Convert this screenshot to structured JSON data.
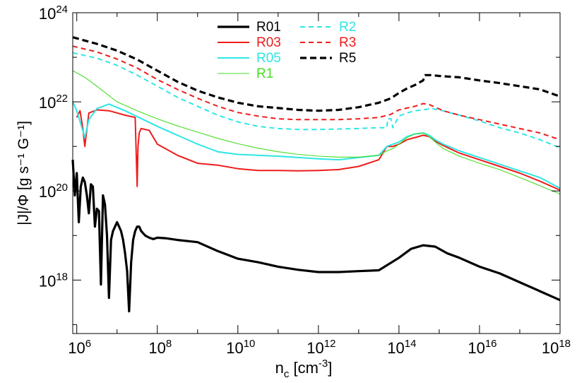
{
  "chart_data": {
    "type": "line",
    "title": "",
    "xlabel": {
      "base": "n",
      "sub": "c",
      "unit_pre": " [cm",
      "unit_sup": "-3",
      "unit_post": "]"
    },
    "ylabel": "|J|/Φ [g s⁻¹ G⁻¹]",
    "xscale": "log",
    "yscale": "log",
    "xlim": [
      5.9,
      18.0
    ],
    "ylim": [
      16.8,
      24.0
    ],
    "grid": false,
    "legend_position": "top-center",
    "x_ticks": [
      {
        "base": "10",
        "exp": "6"
      },
      {
        "base": "10",
        "exp": "8"
      },
      {
        "base": "10",
        "exp": "10"
      },
      {
        "base": "10",
        "exp": "12"
      },
      {
        "base": "10",
        "exp": "14"
      },
      {
        "base": "10",
        "exp": "16"
      },
      {
        "base": "10",
        "exp": "18"
      }
    ],
    "y_ticks": [
      {
        "base": "10",
        "exp": "18"
      },
      {
        "base": "10",
        "exp": "20"
      },
      {
        "base": "10",
        "exp": "22"
      },
      {
        "base": "10",
        "exp": "24"
      }
    ],
    "x_major_log": [
      6,
      8,
      10,
      12,
      14,
      16,
      18
    ],
    "y_major_log": [
      18,
      20,
      22,
      24
    ],
    "x_minor_log": [
      7,
      9,
      11,
      13,
      15,
      17
    ],
    "y_minor_log": [
      17,
      19,
      21,
      23
    ],
    "series": [
      {
        "name": "R01",
        "color": "#000000",
        "dash": "solid",
        "weight": "thick",
        "log_x": [
          5.9,
          5.95,
          6.0,
          6.05,
          6.1,
          6.15,
          6.2,
          6.25,
          6.3,
          6.35,
          6.4,
          6.45,
          6.5,
          6.55,
          6.6,
          6.65,
          6.7,
          6.75,
          6.8,
          6.85,
          6.9,
          6.95,
          7.0,
          7.05,
          7.1,
          7.15,
          7.2,
          7.25,
          7.3,
          7.35,
          7.4,
          7.45,
          7.5,
          7.55,
          7.6,
          7.7,
          7.8,
          7.9,
          8.0,
          8.2,
          8.5,
          9.0,
          9.5,
          10.0,
          10.5,
          11.0,
          11.5,
          12.0,
          12.5,
          13.0,
          13.5,
          14.0,
          14.3,
          14.6,
          14.9,
          15.2,
          15.5,
          16.0,
          16.5,
          17.0,
          17.5,
          18.0
        ],
        "log_y": [
          20.7,
          19.9,
          20.4,
          19.3,
          20.1,
          20.3,
          20.2,
          19.9,
          19.5,
          20.15,
          20.1,
          19.2,
          19.6,
          19.55,
          17.9,
          19.9,
          19.7,
          19.0,
          17.6,
          18.9,
          19.1,
          19.2,
          19.3,
          19.2,
          19.1,
          18.9,
          18.6,
          18.2,
          17.3,
          18.4,
          18.9,
          19.1,
          19.2,
          19.2,
          19.1,
          19.0,
          18.95,
          18.92,
          18.95,
          18.94,
          18.9,
          18.85,
          18.65,
          18.48,
          18.4,
          18.3,
          18.23,
          18.18,
          18.18,
          18.2,
          18.22,
          18.5,
          18.7,
          18.78,
          18.75,
          18.6,
          18.5,
          18.3,
          18.15,
          17.95,
          17.75,
          17.55
        ]
      },
      {
        "name": "R03",
        "color": "#ee1c1c",
        "dash": "solid",
        "weight": "medium",
        "log_x": [
          6.0,
          6.08,
          6.15,
          6.2,
          6.3,
          6.5,
          6.8,
          7.2,
          7.45,
          7.5,
          7.52,
          7.55,
          7.6,
          7.7,
          7.8,
          8.0,
          8.5,
          9.0,
          9.5,
          10.0,
          10.5,
          11.0,
          11.5,
          12.0,
          12.5,
          13.0,
          13.5,
          13.7,
          13.85,
          14.0,
          14.2,
          14.4,
          14.6,
          14.75,
          14.9,
          15.1,
          15.5,
          16.0,
          16.5,
          17.0,
          17.5,
          18.0
        ],
        "log_y": [
          21.65,
          21.8,
          21.4,
          21.0,
          21.75,
          21.82,
          21.8,
          21.7,
          21.65,
          20.1,
          21.0,
          21.3,
          21.4,
          21.38,
          21.36,
          21.05,
          20.8,
          20.62,
          20.58,
          20.5,
          20.46,
          20.46,
          20.45,
          20.46,
          20.48,
          20.55,
          20.7,
          21.0,
          21.0,
          21.05,
          21.15,
          21.2,
          21.25,
          21.22,
          21.12,
          21.02,
          20.85,
          20.7,
          20.55,
          20.4,
          20.22,
          20.02
        ]
      },
      {
        "name": "R05",
        "color": "#2ee6e6",
        "dash": "solid",
        "weight": "medium",
        "log_x": [
          5.9,
          6.0,
          6.1,
          6.2,
          6.3,
          6.5,
          6.8,
          7.2,
          8.0,
          8.5,
          9.0,
          9.5,
          10.0,
          10.5,
          11.0,
          11.5,
          12.0,
          12.5,
          13.0,
          13.5,
          13.7,
          13.85,
          14.0,
          14.2,
          14.4,
          14.6,
          14.75,
          14.9,
          15.1,
          15.5,
          16.0,
          16.5,
          17.0,
          17.5,
          18.0
        ],
        "log_y": [
          22.0,
          21.8,
          21.5,
          21.2,
          21.6,
          21.85,
          21.95,
          21.8,
          21.45,
          21.25,
          21.05,
          20.88,
          20.82,
          20.8,
          20.78,
          20.75,
          20.72,
          20.7,
          20.75,
          20.8,
          21.0,
          21.05,
          21.1,
          21.22,
          21.28,
          21.3,
          21.25,
          21.15,
          21.05,
          20.9,
          20.75,
          20.6,
          20.45,
          20.3,
          20.06
        ]
      },
      {
        "name": "R1",
        "color": "#44dd22",
        "dash": "solid",
        "weight": "thin",
        "log_x": [
          5.9,
          6.0,
          6.2,
          6.5,
          7.0,
          7.5,
          8.0,
          8.5,
          9.0,
          9.5,
          10.0,
          10.5,
          11.0,
          11.5,
          12.0,
          12.5,
          13.0,
          13.5,
          13.7,
          13.85,
          14.0,
          14.2,
          14.4,
          14.6,
          14.75,
          14.9,
          15.1,
          15.5,
          16.0,
          16.5,
          17.0,
          17.5,
          18.0
        ],
        "log_y": [
          22.7,
          22.65,
          22.55,
          22.35,
          22.0,
          21.8,
          21.62,
          21.46,
          21.32,
          21.18,
          21.06,
          20.96,
          20.88,
          20.82,
          20.78,
          20.76,
          20.76,
          20.8,
          20.9,
          20.95,
          21.05,
          21.2,
          21.28,
          21.3,
          21.22,
          21.1,
          20.95,
          20.78,
          20.62,
          20.48,
          20.3,
          20.12,
          19.93
        ]
      },
      {
        "name": "R2",
        "color": "#2ee6e6",
        "dash": "dashed",
        "weight": "medium",
        "log_x": [
          5.9,
          6.5,
          7.0,
          7.5,
          8.0,
          8.5,
          9.0,
          9.5,
          10.0,
          10.5,
          11.0,
          11.5,
          12.0,
          12.5,
          13.0,
          13.5,
          13.7,
          13.72,
          13.8,
          13.85,
          14.0,
          14.2,
          14.4,
          14.6,
          14.8,
          15.0,
          15.5,
          16.0,
          16.5,
          17.0,
          17.5,
          18.0
        ],
        "log_y": [
          23.1,
          22.98,
          22.82,
          22.6,
          22.35,
          22.1,
          21.9,
          21.7,
          21.55,
          21.45,
          21.4,
          21.38,
          21.38,
          21.39,
          21.4,
          21.42,
          21.42,
          21.62,
          21.62,
          21.42,
          21.68,
          21.75,
          21.8,
          21.82,
          21.85,
          21.82,
          21.7,
          21.57,
          21.42,
          21.3,
          21.15,
          20.97
        ]
      },
      {
        "name": "R3",
        "color": "#ee1c1c",
        "dash": "dashed",
        "weight": "medium",
        "log_x": [
          5.9,
          6.5,
          7.0,
          7.5,
          8.0,
          8.5,
          9.0,
          9.5,
          10.0,
          10.5,
          11.0,
          11.5,
          12.0,
          12.5,
          13.0,
          13.5,
          13.8,
          14.0,
          14.2,
          14.4,
          14.6,
          14.75,
          14.9,
          15.1,
          15.5,
          16.0,
          16.5,
          17.0,
          17.5,
          18.0
        ],
        "log_y": [
          23.25,
          23.12,
          22.96,
          22.76,
          22.5,
          22.28,
          22.08,
          21.9,
          21.76,
          21.68,
          21.62,
          21.6,
          21.6,
          21.6,
          21.62,
          21.65,
          21.72,
          21.82,
          21.86,
          21.9,
          21.96,
          21.94,
          21.88,
          21.8,
          21.7,
          21.6,
          21.5,
          21.4,
          21.3,
          21.15
        ]
      },
      {
        "name": "R5",
        "color": "#000000",
        "dash": "dashed",
        "weight": "thick",
        "log_x": [
          5.9,
          6.5,
          7.0,
          7.5,
          8.0,
          8.5,
          9.0,
          9.5,
          10.0,
          10.5,
          11.0,
          11.5,
          12.0,
          12.5,
          13.0,
          13.5,
          13.8,
          14.0,
          14.2,
          14.4,
          14.6,
          14.65,
          14.8,
          15.0,
          15.5,
          16.0,
          16.5,
          17.0,
          17.5,
          18.0
        ],
        "log_y": [
          23.45,
          23.3,
          23.15,
          22.95,
          22.7,
          22.45,
          22.25,
          22.1,
          21.98,
          21.9,
          21.86,
          21.82,
          21.8,
          21.82,
          21.88,
          21.98,
          22.08,
          22.2,
          22.3,
          22.38,
          22.48,
          22.6,
          22.6,
          22.58,
          22.55,
          22.48,
          22.42,
          22.35,
          22.28,
          22.12
        ]
      }
    ],
    "legend": [
      {
        "label": "R01",
        "color": "#000000",
        "dash": "solid",
        "weight": "thick"
      },
      {
        "label": "R03",
        "color": "#ee1c1c",
        "dash": "solid",
        "weight": "medium"
      },
      {
        "label": "R05",
        "color": "#2ee6e6",
        "dash": "solid",
        "weight": "medium"
      },
      {
        "label": "R1",
        "color": "#44dd22",
        "dash": "solid",
        "weight": "thin"
      },
      {
        "label": "R2",
        "color": "#2ee6e6",
        "dash": "dashed",
        "weight": "medium"
      },
      {
        "label": "R3",
        "color": "#ee1c1c",
        "dash": "dashed",
        "weight": "medium"
      },
      {
        "label": "R5",
        "color": "#000000",
        "dash": "dashed",
        "weight": "thick"
      }
    ]
  }
}
